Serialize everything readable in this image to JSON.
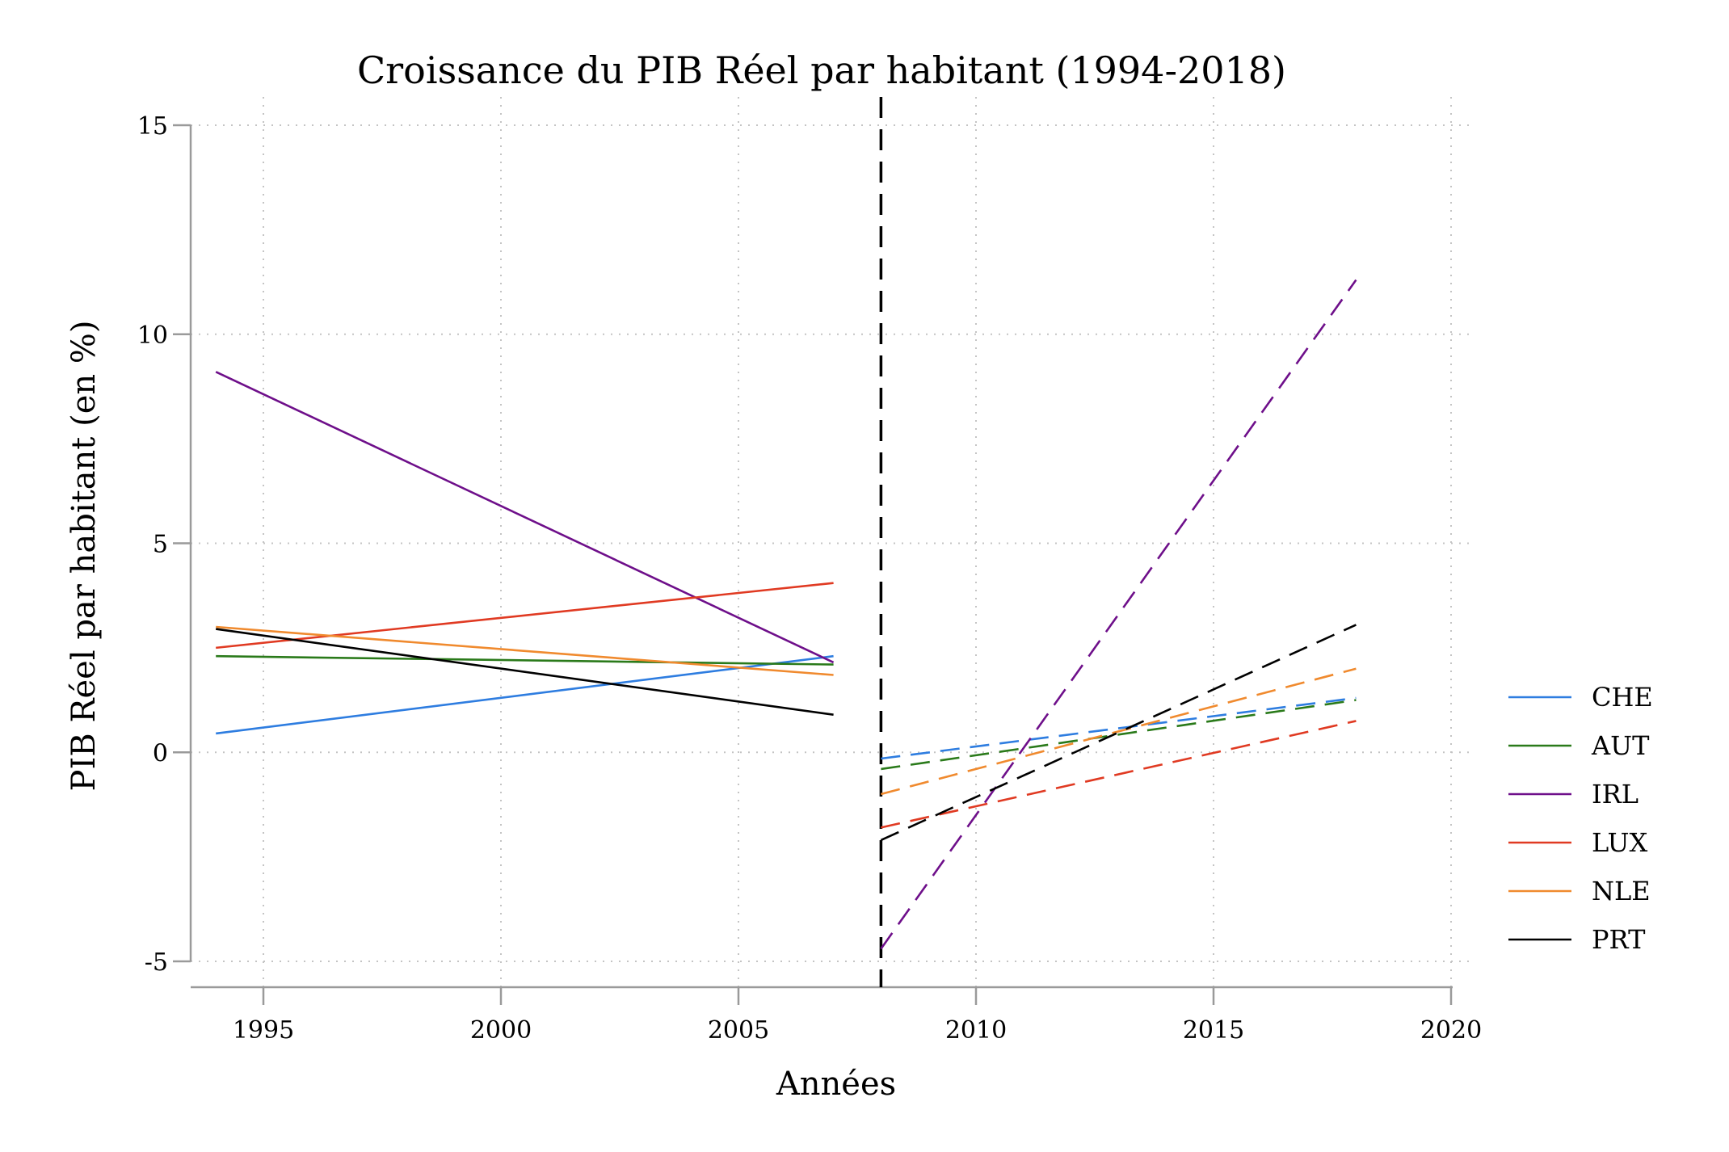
{
  "chart_data": {
    "type": "line",
    "title": "Croissance du PIB Réel par habitant (1994-2018)",
    "xlabel": "Années",
    "ylabel": "PIB Réel par habitant (en %)",
    "xlim": [
      1994,
      2020
    ],
    "ylim": [
      -5,
      15
    ],
    "xticks": [
      1995,
      2000,
      2005,
      2010,
      2015,
      2020
    ],
    "yticks": [
      -5,
      0,
      5,
      10,
      15
    ],
    "xtick_labels": [
      "1995",
      "2000",
      "2005",
      "2010",
      "2015",
      "2020"
    ],
    "ytick_labels": [
      "-5",
      "0",
      "5",
      "10",
      "15"
    ],
    "grid": true,
    "legend_position": "right",
    "break_year": 2008,
    "series": [
      {
        "name": "CHE",
        "color": "#2e7de0",
        "pre": {
          "x": [
            1994,
            2007
          ],
          "y": [
            0.45,
            2.3
          ]
        },
        "post": {
          "x": [
            2008,
            2018
          ],
          "y": [
            -0.15,
            1.3
          ]
        }
      },
      {
        "name": "AUT",
        "color": "#2a7a1a",
        "pre": {
          "x": [
            1994,
            2007
          ],
          "y": [
            2.3,
            2.1
          ]
        },
        "post": {
          "x": [
            2008,
            2018
          ],
          "y": [
            -0.4,
            1.25
          ]
        }
      },
      {
        "name": "IRL",
        "color": "#6e0f8a",
        "pre": {
          "x": [
            1994,
            2007
          ],
          "y": [
            9.1,
            2.15
          ]
        },
        "post": {
          "x": [
            2008,
            2018
          ],
          "y": [
            -4.7,
            11.3
          ]
        }
      },
      {
        "name": "LUX",
        "color": "#e03a22",
        "pre": {
          "x": [
            1994,
            2007
          ],
          "y": [
            2.5,
            4.05
          ]
        },
        "post": {
          "x": [
            2008,
            2018
          ],
          "y": [
            -1.8,
            0.75
          ]
        }
      },
      {
        "name": "NLE",
        "color": "#f08a2e",
        "pre": {
          "x": [
            1994,
            2007
          ],
          "y": [
            3.0,
            1.85
          ]
        },
        "post": {
          "x": [
            2008,
            2018
          ],
          "y": [
            -1.0,
            2.0
          ]
        }
      },
      {
        "name": "PRT",
        "color": "#000000",
        "pre": {
          "x": [
            1994,
            2007
          ],
          "y": [
            2.95,
            0.9
          ]
        },
        "post": {
          "x": [
            2008,
            2018
          ],
          "y": [
            -2.1,
            3.05
          ]
        }
      }
    ]
  }
}
